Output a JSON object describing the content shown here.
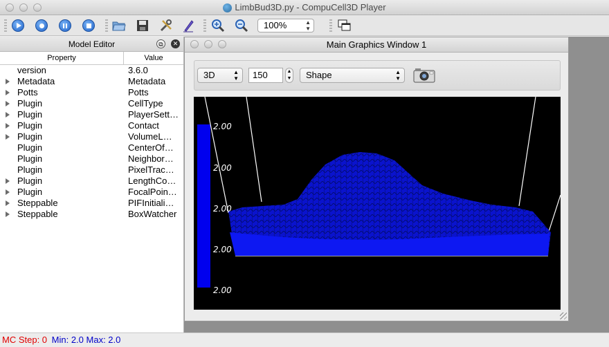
{
  "window": {
    "title": "LimbBud3D.py - CompuCell3D Player"
  },
  "toolbar": {
    "buttons": [
      "run-icon",
      "step-icon",
      "pause-icon",
      "stop-icon",
      "open-folder-icon",
      "save-icon",
      "tools-icon",
      "edit-icon",
      "zoom-in-icon",
      "zoom-out-icon",
      "tile-windows-icon"
    ],
    "zoom_value": "100%"
  },
  "model_editor": {
    "title": "Model Editor",
    "columns": [
      "Property",
      "Value"
    ],
    "rows": [
      {
        "property": "version",
        "value": "3.6.0",
        "expandable": false
      },
      {
        "property": "Metadata",
        "value": "Metadata",
        "expandable": true
      },
      {
        "property": "Potts",
        "value": "Potts",
        "expandable": true
      },
      {
        "property": "Plugin",
        "value": "CellType",
        "expandable": true
      },
      {
        "property": "Plugin",
        "value": "PlayerSett…",
        "expandable": true
      },
      {
        "property": "Plugin",
        "value": "Contact",
        "expandable": true
      },
      {
        "property": "Plugin",
        "value": "VolumeL…",
        "expandable": true
      },
      {
        "property": "Plugin",
        "value": "CenterOf…",
        "expandable": false
      },
      {
        "property": "Plugin",
        "value": "Neighbor…",
        "expandable": false
      },
      {
        "property": "Plugin",
        "value": "PixelTrac…",
        "expandable": false
      },
      {
        "property": "Plugin",
        "value": "LengthCo…",
        "expandable": true
      },
      {
        "property": "Plugin",
        "value": "FocalPoin…",
        "expandable": true
      },
      {
        "property": "Steppable",
        "value": "PIFInitiali…",
        "expandable": true
      },
      {
        "property": "Steppable",
        "value": "BoxWatcher",
        "expandable": true
      }
    ]
  },
  "graphics_window": {
    "title": "Main Graphics Window 1",
    "view_mode": "3D",
    "slice_value": "150",
    "field": "Shape",
    "legend_labels": [
      "2.00",
      "2.00",
      "2.00",
      "2.00",
      "2.00"
    ],
    "colors": {
      "cells": "#0a14e6",
      "background": "#000000",
      "bbox_lines": "#ffffff"
    }
  },
  "status": {
    "mc_step_label": "MC Step: 0",
    "minmax_label": "Min: 2.0 Max: 2.0",
    "colors": {
      "mc_step": "#e00000",
      "minmax": "#0000c8"
    }
  }
}
